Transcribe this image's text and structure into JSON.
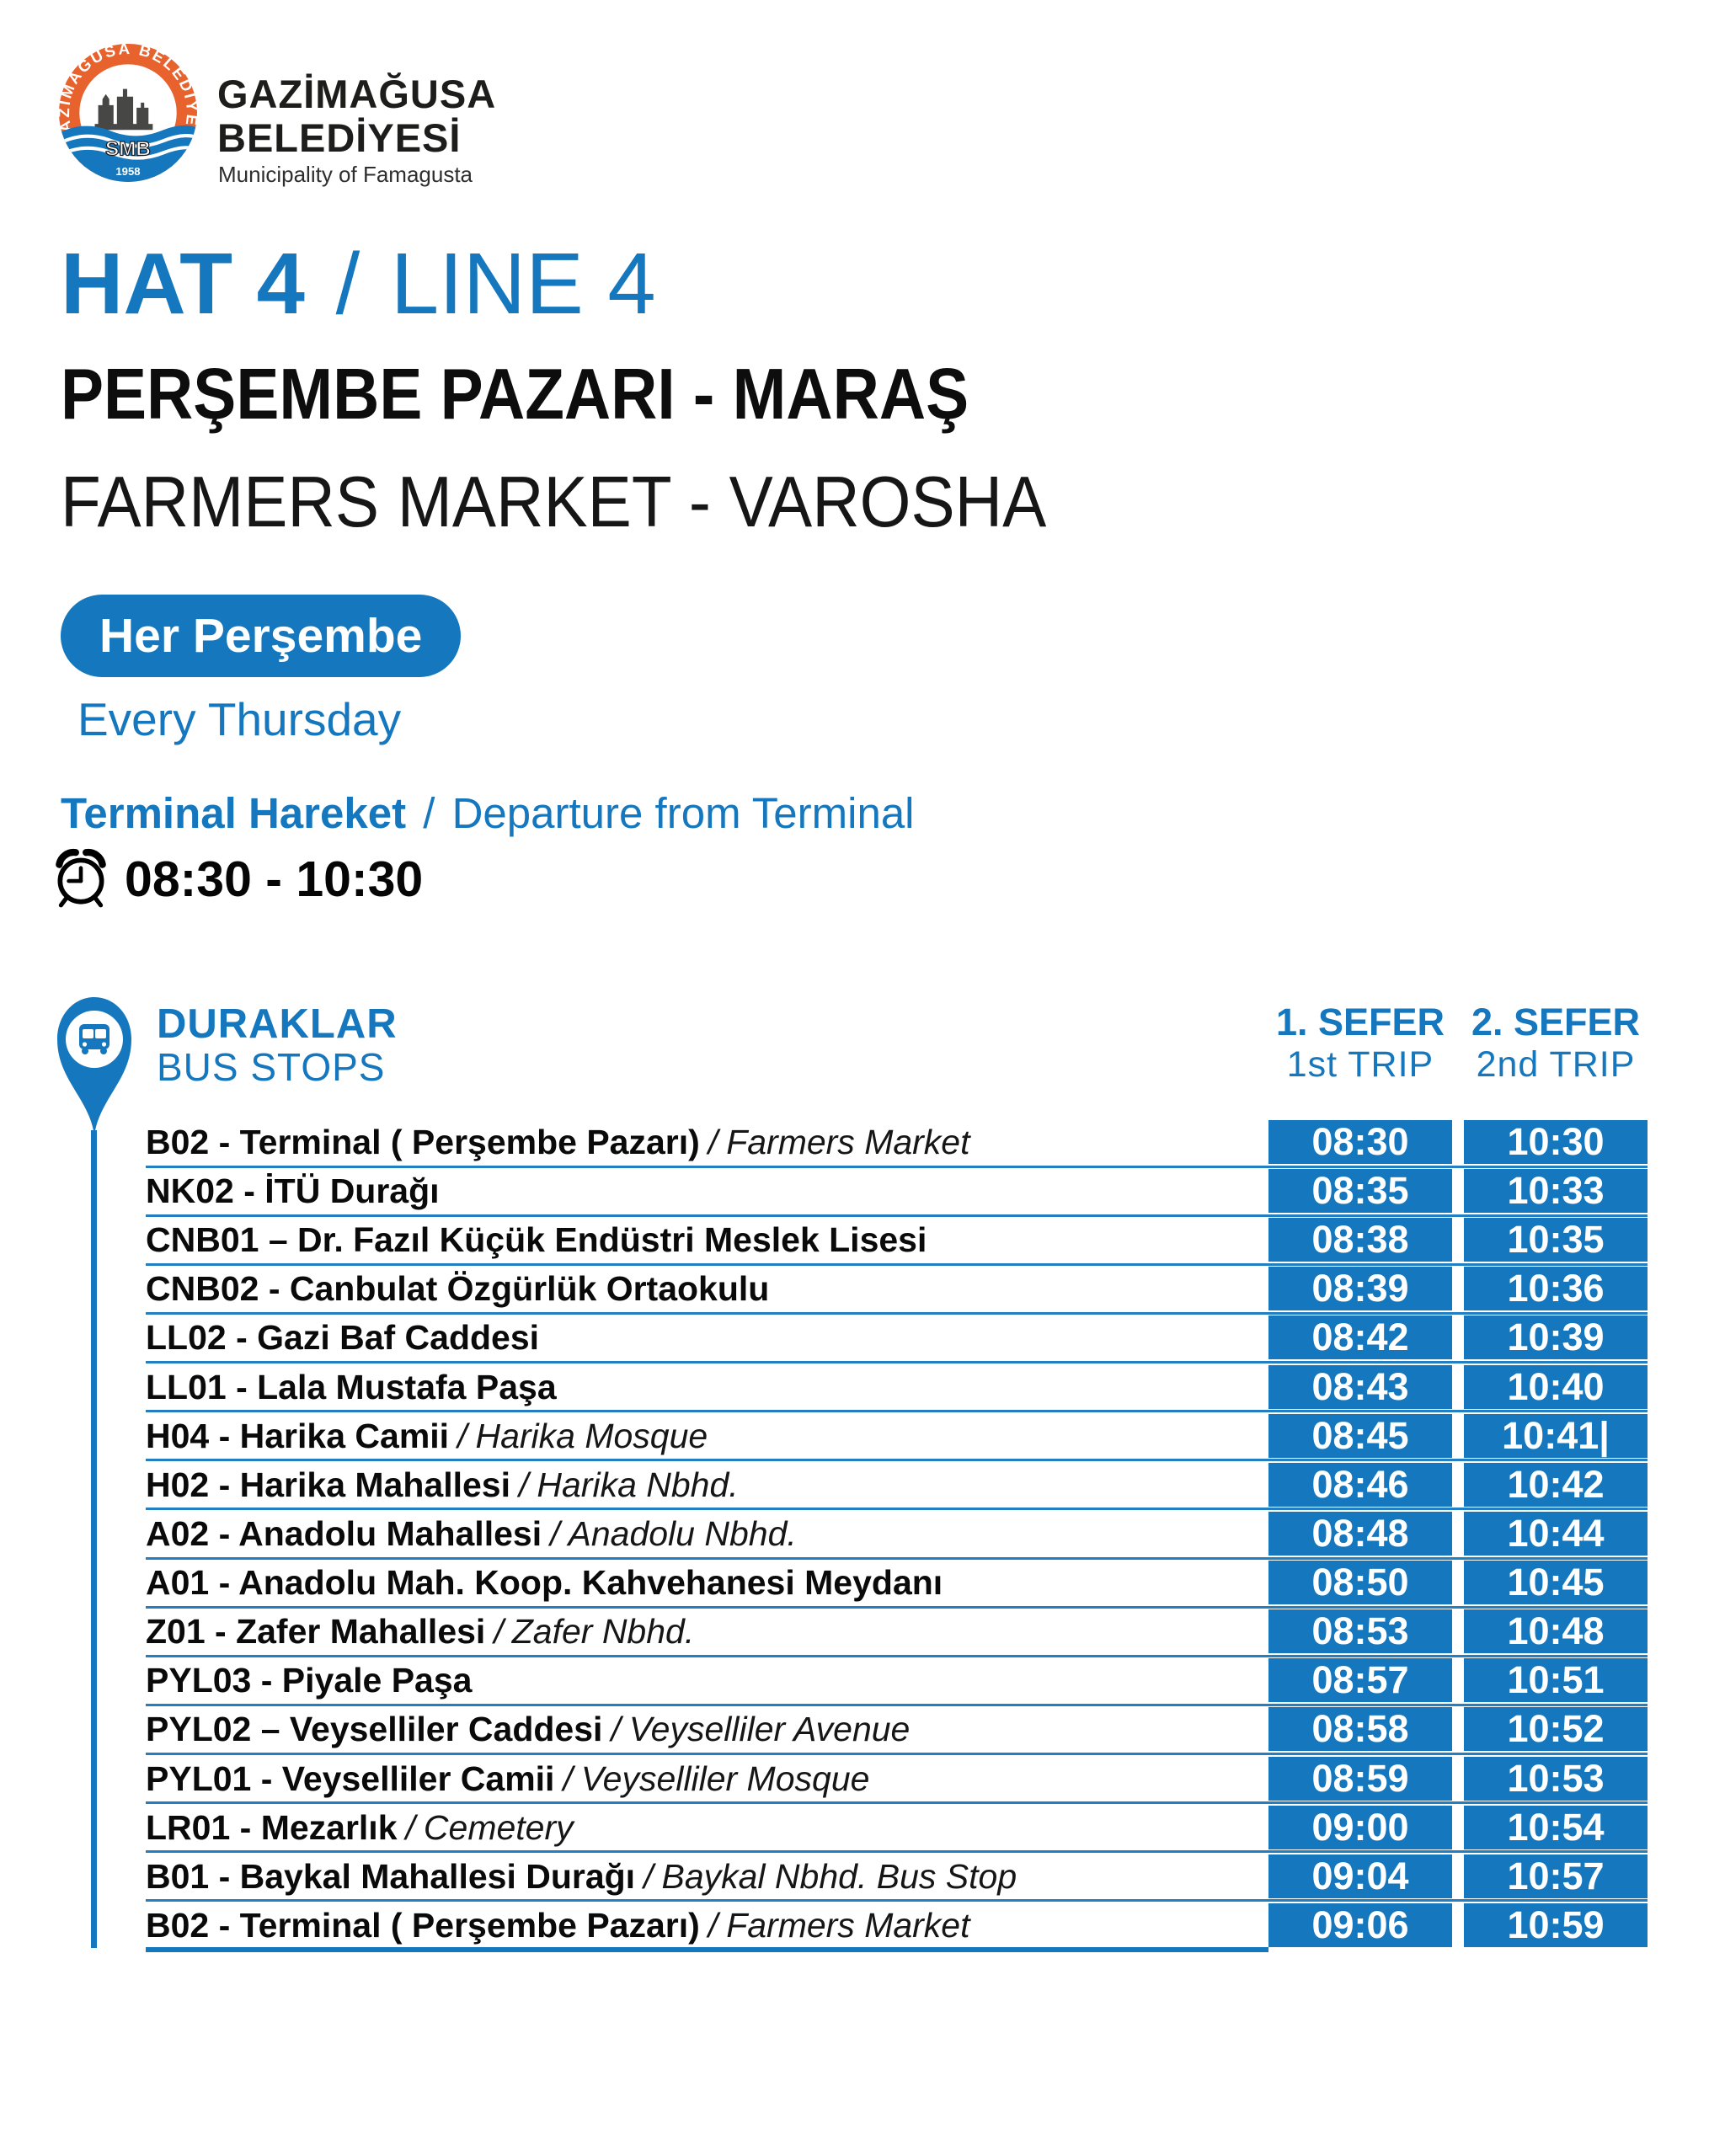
{
  "colors": {
    "primary_blue": "#1577BD",
    "separator_blue": "#2280C2",
    "logo_orange": "#E8622D",
    "text_black": "#0a0a0a",
    "white": "#ffffff"
  },
  "logo": {
    "ring_text": "GAZİMAĞUSA BELEDİYESİ",
    "monogram": "SMB",
    "year": "1958"
  },
  "header": {
    "org_line1": "GAZİMAĞUSA",
    "org_line2": "BELEDİYESİ",
    "org_en": "Municipality of Famagusta"
  },
  "title": {
    "tr": "HAT 4",
    "sep": "/",
    "en": "LINE 4"
  },
  "route": {
    "tr": "PERŞEMBE PAZARI - MARAŞ",
    "en": "FARMERS MARKET - VAROSHA"
  },
  "schedule_badge": {
    "tr": "Her Perşembe",
    "en": "Every Thursday"
  },
  "departure": {
    "tr": "Terminal Hareket",
    "sep": "/",
    "en": "Departure from Terminal",
    "times": "08:30 - 10:30"
  },
  "table": {
    "stops_header": {
      "tr": "DURAKLAR",
      "en": "BUS STOPS"
    },
    "trip1_header": {
      "tr": "1. SEFER",
      "en": "1st TRIP"
    },
    "trip2_header": {
      "tr": "2. SEFER",
      "en": "2nd TRIP"
    },
    "name_separator": "/",
    "rows": [
      {
        "stop_tr": "B02 - Terminal ( Perşembe Pazarı)",
        "stop_en": "Farmers Market",
        "trip1": "08:30",
        "trip2": "10:30"
      },
      {
        "stop_tr": "NK02 - İTÜ Durağı",
        "stop_en": "",
        "trip1": "08:35",
        "trip2": "10:33"
      },
      {
        "stop_tr": "CNB01 – Dr. Fazıl Küçük Endüstri Meslek Lisesi",
        "stop_en": "",
        "trip1": "08:38",
        "trip2": "10:35"
      },
      {
        "stop_tr": "CNB02 - Canbulat Özgürlük Ortaokulu",
        "stop_en": "",
        "trip1": "08:39",
        "trip2": "10:36"
      },
      {
        "stop_tr": "LL02 - Gazi Baf Caddesi",
        "stop_en": "",
        "trip1": "08:42",
        "trip2": "10:39"
      },
      {
        "stop_tr": "LL01 - Lala Mustafa Paşa",
        "stop_en": "",
        "trip1": "08:43",
        "trip2": "10:40"
      },
      {
        "stop_tr": "H04 - Harika Camii",
        "stop_en": "Harika Mosque",
        "trip1": "08:45",
        "trip2": "10:41|"
      },
      {
        "stop_tr": "H02 - Harika Mahallesi",
        "stop_en": "Harika Nbhd.",
        "trip1": "08:46",
        "trip2": "10:42"
      },
      {
        "stop_tr": "A02 - Anadolu Mahallesi",
        "stop_en": "Anadolu Nbhd.",
        "trip1": "08:48",
        "trip2": "10:44"
      },
      {
        "stop_tr": "A01 - Anadolu Mah. Koop. Kahvehanesi Meydanı",
        "stop_en": "",
        "trip1": "08:50",
        "trip2": "10:45"
      },
      {
        "stop_tr": "Z01 - Zafer Mahallesi",
        "stop_en": "Zafer Nbhd.",
        "trip1": "08:53",
        "trip2": "10:48"
      },
      {
        "stop_tr": "PYL03 - Piyale Paşa",
        "stop_en": "",
        "trip1": "08:57",
        "trip2": "10:51"
      },
      {
        "stop_tr": "PYL02 – Veyselliler Caddesi",
        "stop_en": "Veyselliler Avenue",
        "trip1": "08:58",
        "trip2": "10:52"
      },
      {
        "stop_tr": "PYL01 - Veyselliler Camii",
        "stop_en": "Veyselliler Mosque",
        "trip1": "08:59",
        "trip2": "10:53"
      },
      {
        "stop_tr": "LR01 - Mezarlık",
        "stop_en": "Cemetery",
        "trip1": "09:00",
        "trip2": "10:54"
      },
      {
        "stop_tr": "B01 - Baykal Mahallesi Durağı",
        "stop_en": "Baykal Nbhd. Bus Stop",
        "trip1": "09:04",
        "trip2": "10:57"
      },
      {
        "stop_tr": "B02 - Terminal ( Perşembe Pazarı)",
        "stop_en": "Farmers Market",
        "trip1": "09:06",
        "trip2": "10:59"
      }
    ]
  }
}
